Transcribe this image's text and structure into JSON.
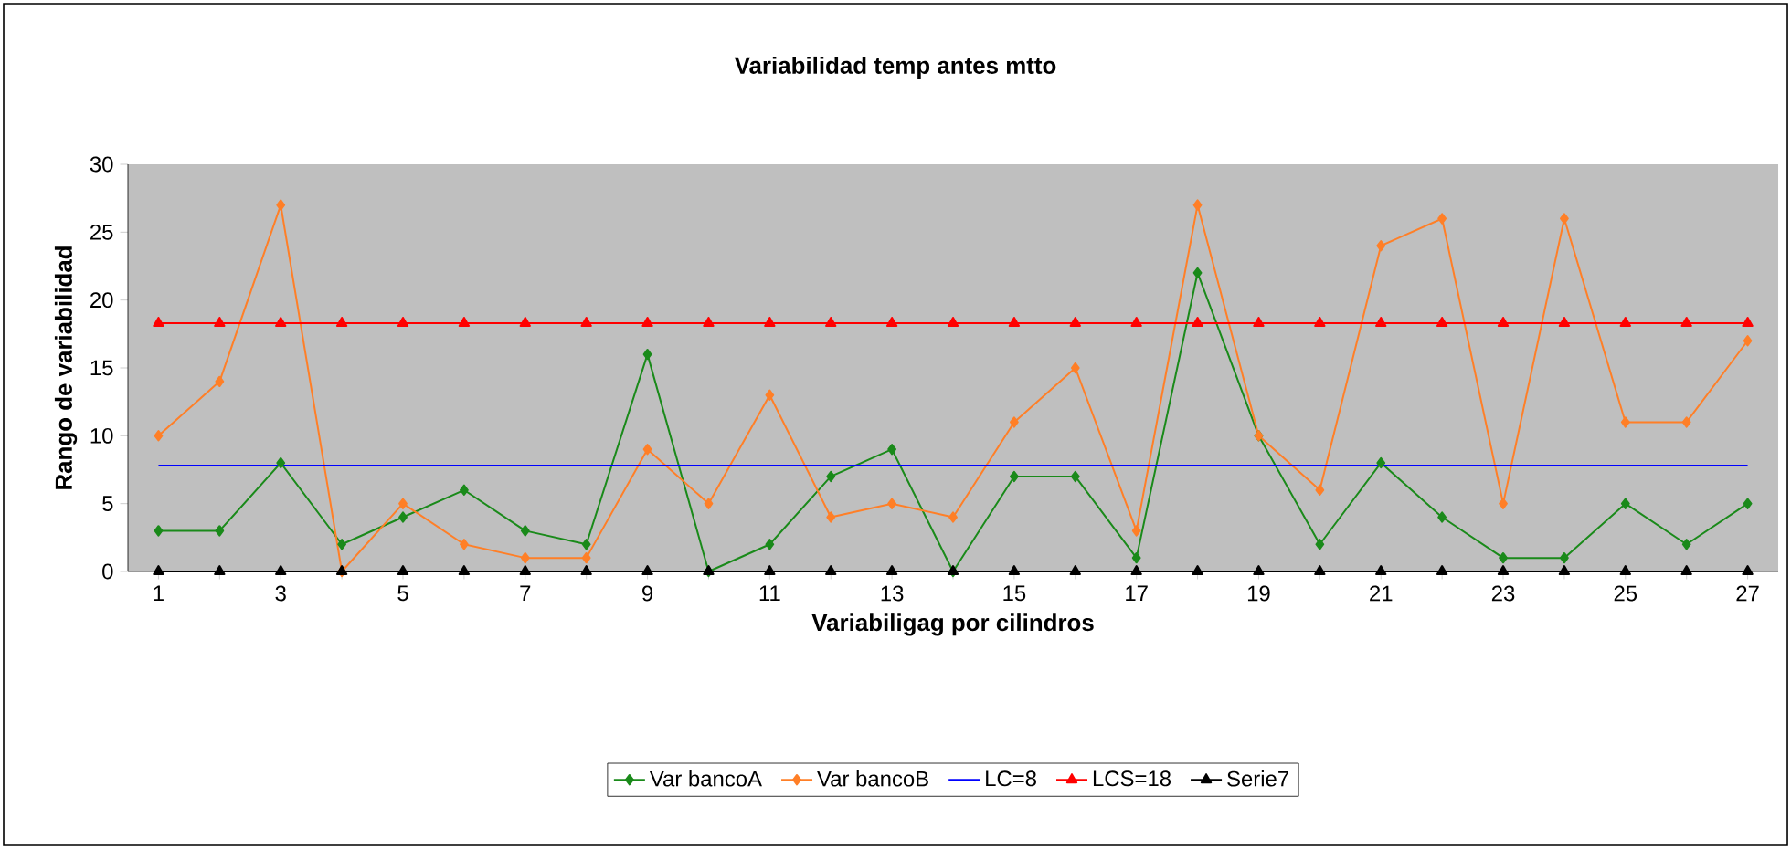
{
  "chart_data": {
    "type": "line",
    "title": "Variabilidad temp antes mtto",
    "xlabel": "Variabiligag por cilindros",
    "ylabel": "Rango de variabilidad",
    "categories": [
      "1",
      null,
      "3",
      null,
      "5",
      null,
      "7",
      null,
      "9",
      null,
      "11",
      null,
      "13",
      null,
      "15",
      null,
      "17",
      null,
      "19",
      null,
      "21",
      null,
      "23",
      null,
      "25",
      null,
      "27"
    ],
    "ylim": [
      0,
      30
    ],
    "yticks": [
      0,
      5,
      10,
      15,
      20,
      25,
      30
    ],
    "grid": false,
    "legend": "bottom",
    "series": [
      {
        "name": "Var bancoA",
        "color": "#1a8a1a",
        "marker": "diamond",
        "values": [
          3,
          3,
          8,
          2,
          4,
          6,
          3,
          2,
          16,
          0,
          2,
          7,
          9,
          0,
          7,
          7,
          1,
          22,
          10,
          2,
          8,
          4,
          1,
          1,
          5,
          2,
          5
        ]
      },
      {
        "name": "Var bancoB",
        "color": "#ff7f27",
        "marker": "diamond",
        "values": [
          10,
          14,
          27,
          0,
          5,
          2,
          1,
          1,
          9,
          5,
          13,
          4,
          5,
          4,
          11,
          15,
          3,
          27,
          10,
          6,
          24,
          26,
          5,
          26,
          11,
          11,
          17
        ]
      },
      {
        "name": "LC=8",
        "color": "#0000ff",
        "marker": "none",
        "values": [
          7.8,
          7.8,
          7.8,
          7.8,
          7.8,
          7.8,
          7.8,
          7.8,
          7.8,
          7.8,
          7.8,
          7.8,
          7.8,
          7.8,
          7.8,
          7.8,
          7.8,
          7.8,
          7.8,
          7.8,
          7.8,
          7.8,
          7.8,
          7.8,
          7.8,
          7.8,
          7.8
        ]
      },
      {
        "name": "LCS=18",
        "color": "#ff0000",
        "marker": "triangle",
        "values": [
          18.3,
          18.3,
          18.3,
          18.3,
          18.3,
          18.3,
          18.3,
          18.3,
          18.3,
          18.3,
          18.3,
          18.3,
          18.3,
          18.3,
          18.3,
          18.3,
          18.3,
          18.3,
          18.3,
          18.3,
          18.3,
          18.3,
          18.3,
          18.3,
          18.3,
          18.3,
          18.3
        ]
      },
      {
        "name": "Serie7",
        "color": "#000000",
        "marker": "triangle",
        "values": [
          0,
          0,
          0,
          0,
          0,
          0,
          0,
          0,
          0,
          0,
          0,
          0,
          0,
          0,
          0,
          0,
          0,
          0,
          0,
          0,
          0,
          0,
          0,
          0,
          0,
          0,
          0
        ]
      }
    ]
  }
}
